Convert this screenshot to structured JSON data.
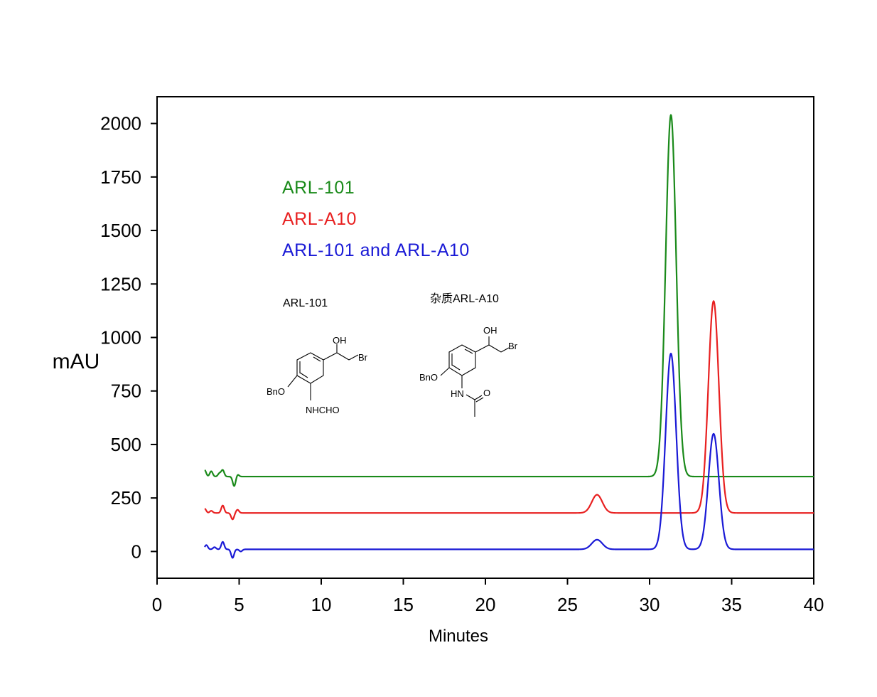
{
  "chart_data": {
    "type": "line",
    "xlabel": "Minutes",
    "ylabel": "mAU",
    "xlim": [
      0,
      40
    ],
    "ylim": [
      -125,
      2125
    ],
    "xticks": [
      0,
      5,
      10,
      15,
      20,
      25,
      30,
      35,
      40
    ],
    "yticks": [
      0,
      250,
      500,
      750,
      1000,
      1250,
      1500,
      1750,
      2000
    ],
    "xtick_labels": [
      "0",
      "5",
      "10",
      "15",
      "20",
      "25",
      "30",
      "35",
      "40"
    ],
    "ytick_labels": [
      "0",
      "250",
      "500",
      "750",
      "1000",
      "1250",
      "1500",
      "1750",
      "2000"
    ],
    "grid": false,
    "legend_position": "upper-left inside plot",
    "series": [
      {
        "name": "ARL-101",
        "color": "#1a8a1a",
        "baseline": 350,
        "disturbance": [
          [
            2.9,
            30
          ],
          [
            3.3,
            25
          ],
          [
            3.8,
            15
          ],
          [
            4.0,
            30
          ],
          [
            4.7,
            -45
          ],
          [
            4.9,
            10
          ]
        ],
        "peaks": [
          {
            "x": 31.3,
            "y": 2040
          }
        ]
      },
      {
        "name": "ARL-A10",
        "color": "#e82020",
        "baseline": 180,
        "disturbance": [
          [
            2.9,
            20
          ],
          [
            3.3,
            10
          ],
          [
            4.0,
            35
          ],
          [
            4.6,
            -30
          ],
          [
            4.9,
            15
          ]
        ],
        "peaks": [
          {
            "x": 26.8,
            "y": 265
          },
          {
            "x": 33.9,
            "y": 1170
          }
        ]
      },
      {
        "name": "ARL-101 and ARL-A10",
        "color": "#1a1ad6",
        "baseline": 10,
        "disturbance": [
          [
            3.0,
            20
          ],
          [
            3.5,
            10
          ],
          [
            4.0,
            35
          ],
          [
            4.6,
            -40
          ],
          [
            5.1,
            -10
          ]
        ],
        "peaks": [
          {
            "x": 26.8,
            "y": 55
          },
          {
            "x": 31.3,
            "y": 925
          },
          {
            "x": 33.9,
            "y": 550
          }
        ]
      }
    ],
    "legend": [
      "ARL-101",
      "ARL-A10",
      "ARL-101 and ARL-A10"
    ],
    "annotations": {
      "structure_1_title": "ARL-101",
      "structure_2_title": "杂质ARL-A10",
      "atom_labels": {
        "oh": "OH",
        "br": "Br",
        "bno": "BnO",
        "nhcho": "NHCHO",
        "hn": "HN",
        "o": "O"
      }
    }
  }
}
